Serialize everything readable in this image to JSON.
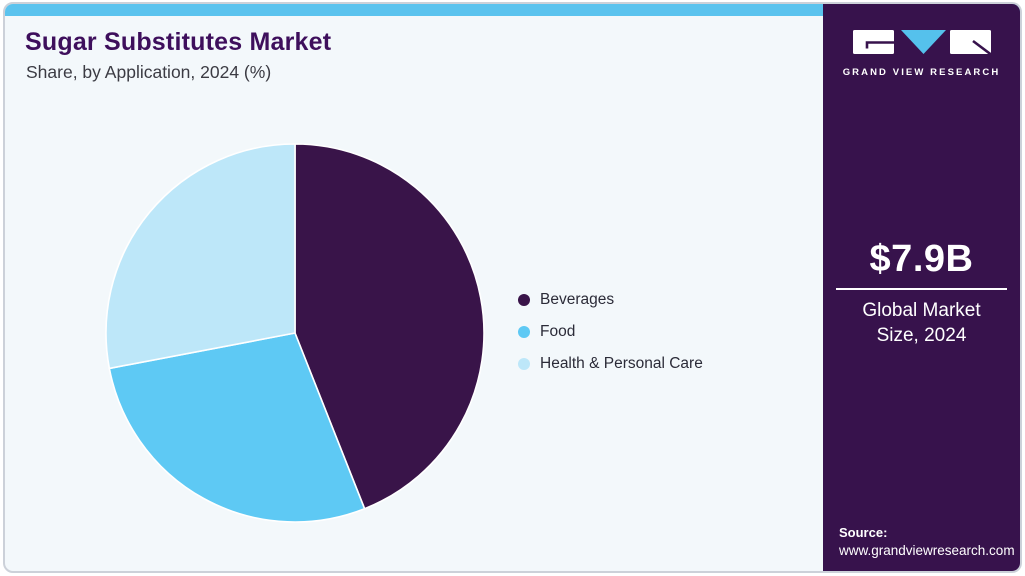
{
  "card": {
    "title": "Sugar Substitutes Market",
    "subtitle": "Share, by Application, 2024 (%)"
  },
  "chart_data": {
    "type": "pie",
    "title": "Sugar Substitutes Market Share, by Application, 2024 (%)",
    "categories": [
      "Beverages",
      "Food",
      "Health & Personal Care"
    ],
    "values": [
      44,
      28,
      28
    ],
    "unit": "percent of market share",
    "colors": [
      "#391449",
      "#5ec9f4",
      "#bde7f9"
    ],
    "start_angle_deg": 0,
    "direction": "clockwise",
    "legend_position": "right",
    "data_labels_shown": false,
    "slice_stroke": "#ffffff"
  },
  "sidebar": {
    "brand": "GRAND VIEW RESEARCH",
    "market_size": {
      "value": "$7.9B",
      "label": "Global Market Size, 2024"
    },
    "source": {
      "label": "Source:",
      "url": "www.grandviewresearch.com"
    }
  },
  "colors": {
    "accent_bar": "#5bc3ee",
    "card_background": "#f3f8fb",
    "sidebar_background": "#37124c",
    "title_text": "#3e0f5c",
    "logo_triangle": "#55c1ec"
  }
}
